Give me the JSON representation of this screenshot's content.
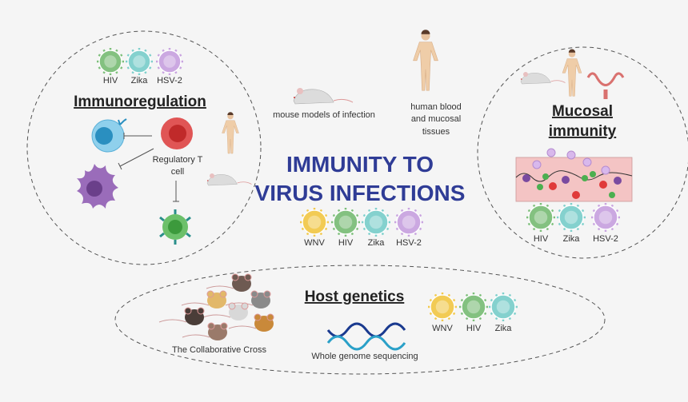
{
  "title": {
    "line1": "IMMUNITY TO",
    "line2": "VIRUS INFECTIONS",
    "color": "#2f3c96"
  },
  "colors": {
    "WNV": "#f2c94c",
    "HIV": "#7dbf7a",
    "Zika": "#7fd0cc",
    "HSV-2": "#c9a4e0",
    "tissue": "#f4c4c4"
  },
  "immunoregulation": {
    "heading": "Immunoregulation",
    "viruses": [
      "HIV",
      "Zika",
      "HSV-2"
    ],
    "treg_label_1": "Regulatory T",
    "treg_label_2": "cell"
  },
  "center": {
    "mouse_label": "mouse models of infection",
    "human_label": [
      "human blood",
      "and mucosal",
      "tissues"
    ],
    "viruses": [
      "WNV",
      "HIV",
      "Zika",
      "HSV-2"
    ]
  },
  "mucosal": {
    "heading_1": "Mucosal",
    "heading_2": "immunity",
    "viruses": [
      "HIV",
      "Zika",
      "HSV-2"
    ]
  },
  "host_genetics": {
    "heading": "Host genetics",
    "cc_label": "The Collaborative Cross",
    "wgs_label": "Whole genome sequencing",
    "viruses": [
      "WNV",
      "HIV",
      "Zika"
    ]
  }
}
